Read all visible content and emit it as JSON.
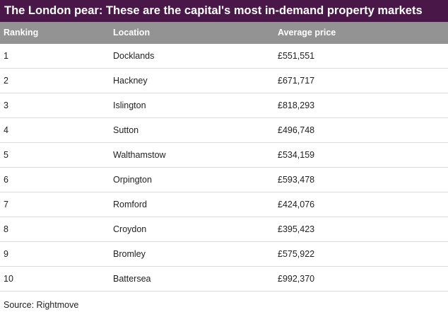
{
  "chart_data": {
    "type": "table",
    "title": "The London pear: These are the capital's most in-demand property markets",
    "columns": [
      "Ranking",
      "Location",
      "Average price"
    ],
    "rows": [
      [
        "1",
        "Docklands",
        "£551,551"
      ],
      [
        "2",
        "Hackney",
        "£671,717"
      ],
      [
        "3",
        "Islington",
        "£818,293"
      ],
      [
        "4",
        "Sutton",
        "£496,748"
      ],
      [
        "5",
        "Walthamstow",
        "£534,159"
      ],
      [
        "6",
        "Orpington",
        "£593,478"
      ],
      [
        "7",
        "Romford",
        "£424,076"
      ],
      [
        "8",
        "Croydon",
        "£395,423"
      ],
      [
        "9",
        "Bromley",
        "£575,922"
      ],
      [
        "10",
        "Battersea",
        "£992,370"
      ]
    ],
    "source": "Source: Rightmove"
  },
  "colors": {
    "title_background": "#4a1848",
    "header_background": "#939393",
    "row_divider": "#dcdcdc"
  }
}
